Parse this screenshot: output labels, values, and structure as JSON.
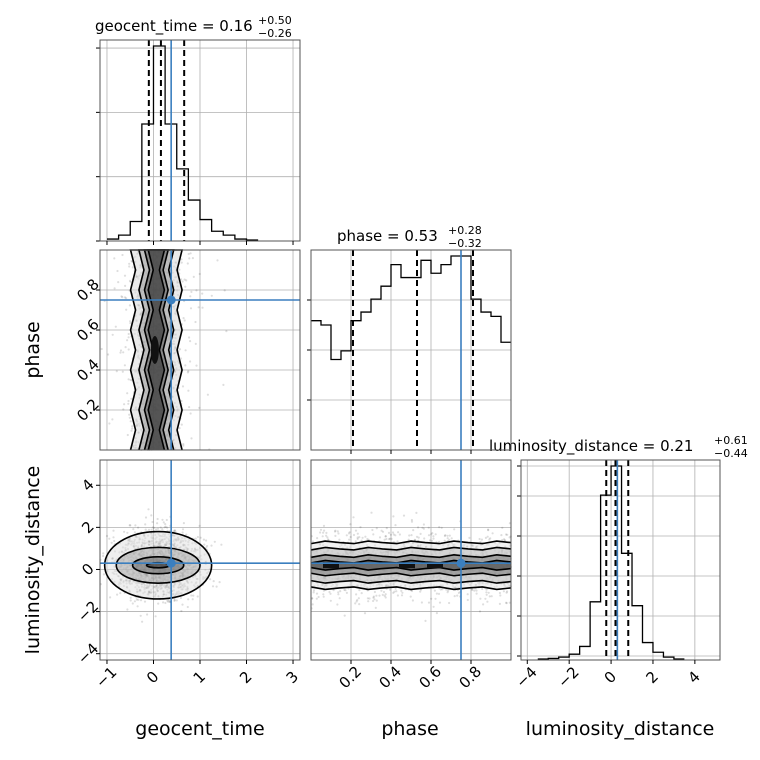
{
  "chart_data": {
    "type": "corner",
    "parameters": [
      "geocent_time",
      "phase",
      "luminosity_distance"
    ],
    "injection_values": {
      "geocent_time": 0.38,
      "phase": 0.75,
      "luminosity_distance": 0.3
    },
    "titles": [
      {
        "name": "geocent_time",
        "median": "0.16",
        "plus": "+0.50",
        "minus": "−0.26"
      },
      {
        "name": "phase",
        "median": "0.53",
        "plus": "+0.28",
        "minus": "−0.32"
      },
      {
        "name": "luminosity_distance",
        "median": "0.21",
        "plus": "+0.61",
        "minus": "−0.44"
      }
    ],
    "axis_labels": {
      "x": [
        "geocent_time",
        "phase",
        "luminosity_distance"
      ],
      "y": [
        "phase",
        "luminosity_distance"
      ]
    },
    "ranges": {
      "geocent_time": [
        -1.15,
        3.15
      ],
      "phase": [
        0.0,
        1.0
      ],
      "luminosity_distance": [
        -4.3,
        5.2
      ]
    },
    "ticks": {
      "geocent_time": [
        "−1",
        "0",
        "1",
        "2",
        "3"
      ],
      "phase_x": [
        "0.2",
        "0.4",
        "0.6",
        "0.8"
      ],
      "phase_y": [
        "0.2",
        "0.4",
        "0.6",
        "0.8"
      ],
      "luminosity_distance_x": [
        "−4",
        "−2",
        "0",
        "2",
        "4"
      ],
      "luminosity_distance_y": [
        "−4",
        "−2",
        "0",
        "2",
        "4"
      ]
    },
    "histograms": {
      "geocent_time": {
        "edges": [
          -1.0,
          -0.75,
          -0.5,
          -0.25,
          0.0,
          0.25,
          0.5,
          0.75,
          1.0,
          1.25,
          1.5,
          1.75,
          2.0,
          2.25
        ],
        "counts": [
          1,
          3,
          10,
          60,
          100,
          60,
          37,
          21,
          11,
          5,
          3,
          1,
          0.5
        ]
      },
      "phase": {
        "edges": [
          0.0,
          0.05,
          0.1,
          0.15,
          0.2,
          0.25,
          0.3,
          0.35,
          0.4,
          0.45,
          0.5,
          0.55,
          0.6,
          0.65,
          0.7,
          0.75,
          0.8,
          0.85,
          0.9,
          0.95,
          1.0
        ],
        "counts": [
          3,
          2.9,
          2.1,
          2.3,
          3.0,
          3.2,
          3.5,
          3.8,
          4.3,
          4.0,
          4.0,
          4.4,
          4.1,
          4.3,
          4.5,
          4.5,
          3.5,
          3.2,
          3.1,
          2.5
        ]
      },
      "luminosity_distance": {
        "edges": [
          -3.5,
          -3.0,
          -2.5,
          -2.0,
          -1.5,
          -1.0,
          -0.5,
          0.0,
          0.5,
          1.0,
          1.5,
          2.0,
          2.5,
          3.0,
          3.5
        ],
        "counts": [
          0.5,
          0.8,
          1.5,
          3,
          7,
          30,
          85,
          100,
          55,
          28,
          9,
          4,
          1.5,
          0.5
        ]
      }
    },
    "quantiles": {
      "geocent_time": [
        -0.1,
        0.16,
        0.66
      ],
      "phase": [
        0.21,
        0.53,
        0.81
      ],
      "luminosity_distance": [
        -0.23,
        0.21,
        0.82
      ]
    },
    "contours_2d": {
      "geocent_time_vs_phase": {
        "center_x": 0.05,
        "widths_x": [
          0.12,
          0.2,
          0.32,
          0.5
        ]
      },
      "geocent_time_vs_luminosity_distance": {
        "center": [
          0.1,
          0.2
        ],
        "radii": [
          [
            0.25,
            0.12
          ],
          [
            0.55,
            0.4
          ],
          [
            0.9,
            0.85
          ],
          [
            1.15,
            1.6
          ]
        ]
      },
      "phase_vs_luminosity_distance": {
        "center_y": 0.2,
        "widths_y": [
          0.18,
          0.45,
          0.8,
          1.1
        ]
      }
    }
  }
}
